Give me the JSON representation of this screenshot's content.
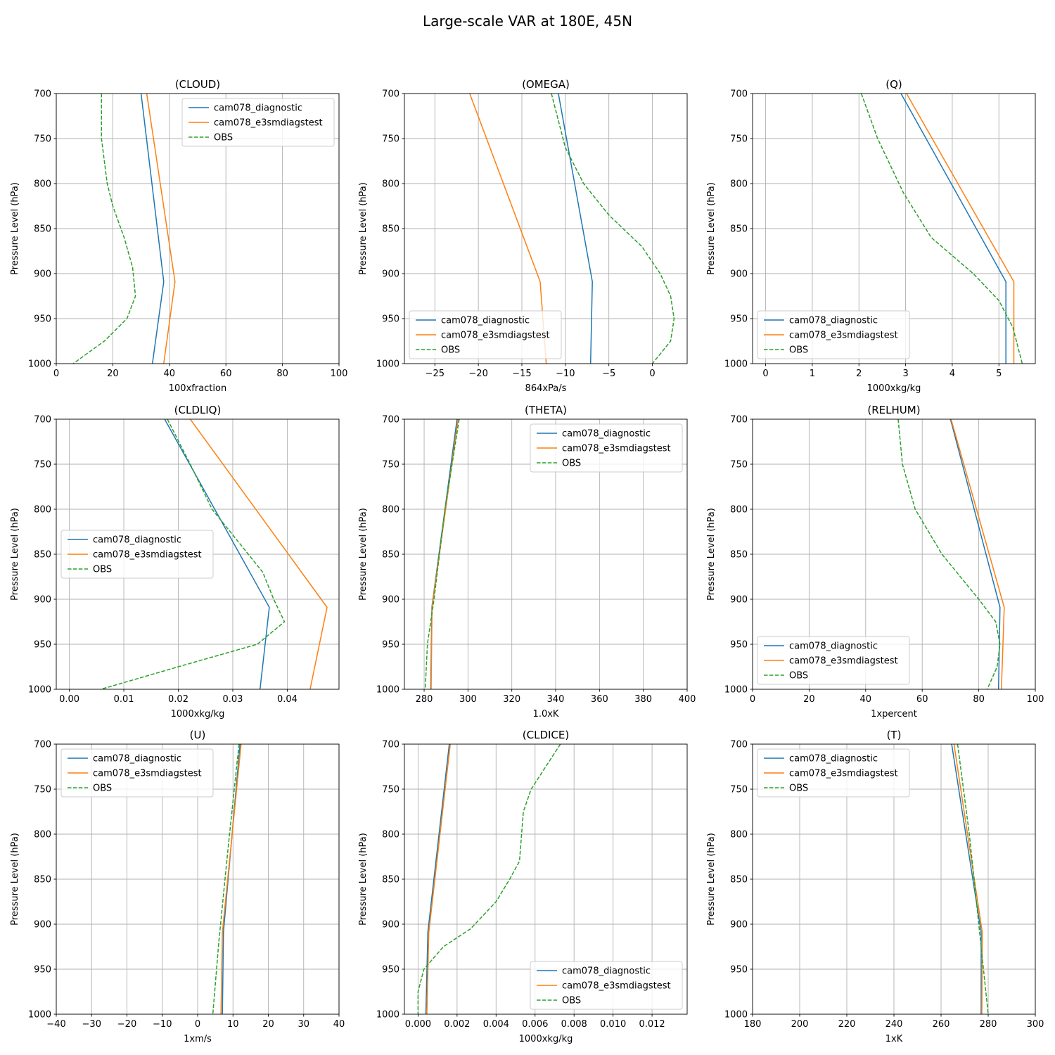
{
  "figure_title": "Large-scale VAR at 180E, 45N",
  "colors": {
    "cam078_diagnostic": "#1f77b4",
    "cam078_e3smdiagstest": "#ff7f0e",
    "OBS": "#2ca02c"
  },
  "chart_data": [
    {
      "type": "line",
      "title": "(CLOUD)",
      "xlabel": "100xfraction",
      "ylabel": "Pressure Level (hPa)",
      "xlim": [
        0,
        100
      ],
      "ylim": [
        1000,
        700
      ],
      "xticks": [
        0,
        20,
        40,
        60,
        80,
        100
      ],
      "xtick_labels": [
        "0",
        "20",
        "40",
        "60",
        "80",
        "100"
      ],
      "yticks": [
        700,
        750,
        800,
        850,
        900,
        950,
        1000
      ],
      "ytick_labels": [
        "700",
        "750",
        "800",
        "850",
        "900",
        "950",
        "1000"
      ],
      "grid": true,
      "legend": "upper right",
      "series": [
        {
          "name": "cam078_diagnostic",
          "style": "solid",
          "x": [
            30,
            38,
            34
          ],
          "y": [
            700,
            909,
            1000
          ]
        },
        {
          "name": "cam078_e3smdiagstest",
          "style": "solid",
          "x": [
            32,
            42,
            38
          ],
          "y": [
            700,
            909,
            1000
          ]
        },
        {
          "name": "OBS",
          "style": "dashed",
          "x": [
            16,
            16,
            18,
            20,
            24,
            27,
            28,
            25,
            17,
            6
          ],
          "y": [
            700,
            750,
            800,
            825,
            860,
            893,
            925,
            950,
            975,
            1000
          ]
        }
      ]
    },
    {
      "type": "line",
      "title": "(OMEGA)",
      "xlabel": "864xPa/s",
      "ylabel": "Pressure Level (hPa)",
      "xlim": [
        -28.5,
        4
      ],
      "ylim": [
        1000,
        700
      ],
      "xticks": [
        -25,
        -20,
        -15,
        -10,
        -5,
        0
      ],
      "xtick_labels": [
        "−25",
        "−20",
        "−15",
        "−10",
        "−5",
        "0"
      ],
      "yticks": [
        700,
        750,
        800,
        850,
        900,
        950,
        1000
      ],
      "ytick_labels": [
        "700",
        "750",
        "800",
        "850",
        "900",
        "950",
        "1000"
      ],
      "grid": true,
      "legend": "lower left",
      "series": [
        {
          "name": "cam078_diagnostic",
          "style": "solid",
          "x": [
            -10.8,
            -6.9,
            -7.1
          ],
          "y": [
            700,
            909,
            1000
          ]
        },
        {
          "name": "cam078_e3smdiagstest",
          "style": "solid",
          "x": [
            -21,
            -12.9,
            -12.2
          ],
          "y": [
            700,
            909,
            1000
          ]
        },
        {
          "name": "OBS",
          "style": "dashed",
          "x": [
            -11.6,
            -10,
            -7.9,
            -5,
            -1.2,
            0.9,
            2.1,
            2.5,
            2.1,
            0
          ],
          "y": [
            700,
            760,
            800,
            835,
            870,
            900,
            925,
            950,
            975,
            1000
          ]
        }
      ]
    },
    {
      "type": "line",
      "title": "(Q)",
      "xlabel": "1000xkg/kg",
      "ylabel": "Pressure Level (hPa)",
      "xlim": [
        -0.28,
        5.78
      ],
      "ylim": [
        1000,
        700
      ],
      "xticks": [
        0,
        1,
        2,
        3,
        4,
        5
      ],
      "xtick_labels": [
        "0",
        "1",
        "2",
        "3",
        "4",
        "5"
      ],
      "yticks": [
        700,
        750,
        800,
        850,
        900,
        950,
        1000
      ],
      "ytick_labels": [
        "700",
        "750",
        "800",
        "850",
        "900",
        "950",
        "1000"
      ],
      "grid": true,
      "legend": "lower left",
      "series": [
        {
          "name": "cam078_diagnostic",
          "style": "solid",
          "x": [
            2.9,
            5.15,
            5.15
          ],
          "y": [
            700,
            909,
            1000
          ]
        },
        {
          "name": "cam078_e3smdiagstest",
          "style": "solid",
          "x": [
            3.02,
            5.32,
            5.32
          ],
          "y": [
            700,
            909,
            1000
          ]
        },
        {
          "name": "OBS",
          "style": "dashed",
          "x": [
            2.05,
            2.4,
            2.95,
            3.55,
            4.45,
            5,
            5.3,
            5.5
          ],
          "y": [
            700,
            750,
            810,
            860,
            900,
            930,
            960,
            1000
          ]
        }
      ]
    },
    {
      "type": "line",
      "title": "(CLDLIQ)",
      "xlabel": "1000xkg/kg",
      "ylabel": "Pressure Level (hPa)",
      "xlim": [
        -0.0024,
        0.0495
      ],
      "ylim": [
        1000,
        700
      ],
      "xticks": [
        0,
        0.01,
        0.02,
        0.03,
        0.04
      ],
      "xtick_labels": [
        "0.00",
        "0.01",
        "0.02",
        "0.03",
        "0.04"
      ],
      "yticks": [
        700,
        750,
        800,
        850,
        900,
        950,
        1000
      ],
      "ytick_labels": [
        "700",
        "750",
        "800",
        "850",
        "900",
        "950",
        "1000"
      ],
      "grid": true,
      "legend": "center left",
      "series": [
        {
          "name": "cam078_diagnostic",
          "style": "solid",
          "x": [
            0.0175,
            0.0367,
            0.035
          ],
          "y": [
            700,
            909,
            1000
          ]
        },
        {
          "name": "cam078_e3smdiagstest",
          "style": "solid",
          "x": [
            0.0222,
            0.0473,
            0.0442
          ],
          "y": [
            700,
            909,
            1000
          ]
        },
        {
          "name": "OBS",
          "style": "dashed",
          "x": [
            0.018,
            0.0222,
            0.0262,
            0.0302,
            0.0355,
            0.0375,
            0.0395,
            0.0345,
            0.02,
            0.0058
          ],
          "y": [
            700,
            750,
            800,
            830,
            870,
            900,
            925,
            950,
            975,
            1000
          ]
        }
      ]
    },
    {
      "type": "line",
      "title": "(THETA)",
      "xlabel": "1.0xK",
      "ylabel": "Pressure Level (hPa)",
      "xlim": [
        271,
        400
      ],
      "ylim": [
        1000,
        700
      ],
      "xticks": [
        280,
        300,
        320,
        340,
        360,
        380,
        400
      ],
      "xtick_labels": [
        "280",
        "300",
        "320",
        "340",
        "360",
        "380",
        "400"
      ],
      "yticks": [
        700,
        750,
        800,
        850,
        900,
        950,
        1000
      ],
      "ytick_labels": [
        "700",
        "750",
        "800",
        "850",
        "900",
        "950",
        "1000"
      ],
      "grid": true,
      "legend": "upper right",
      "series": [
        {
          "name": "cam078_diagnostic",
          "style": "solid",
          "x": [
            295,
            283.5,
            283
          ],
          "y": [
            700,
            909,
            1000
          ]
        },
        {
          "name": "cam078_e3smdiagstest",
          "style": "solid",
          "x": [
            295.5,
            283.6,
            283.2
          ],
          "y": [
            700,
            909,
            1000
          ]
        },
        {
          "name": "OBS",
          "style": "dashed",
          "x": [
            296,
            289.5,
            284.5,
            281.5,
            280.5
          ],
          "y": [
            700,
            800,
            900,
            950,
            1000
          ]
        }
      ]
    },
    {
      "type": "line",
      "title": "(RELHUM)",
      "xlabel": "1xpercent",
      "ylabel": "Pressure Level (hPa)",
      "xlim": [
        0,
        100
      ],
      "ylim": [
        1000,
        700
      ],
      "xticks": [
        0,
        20,
        40,
        60,
        80,
        100
      ],
      "xtick_labels": [
        "0",
        "20",
        "40",
        "60",
        "80",
        "100"
      ],
      "yticks": [
        700,
        750,
        800,
        850,
        900,
        950,
        1000
      ],
      "ytick_labels": [
        "700",
        "750",
        "800",
        "850",
        "900",
        "950",
        "1000"
      ],
      "grid": true,
      "legend": "lower left",
      "series": [
        {
          "name": "cam078_diagnostic",
          "style": "solid",
          "x": [
            70,
            87.5,
            87
          ],
          "y": [
            700,
            909,
            1000
          ]
        },
        {
          "name": "cam078_e3smdiagstest",
          "style": "solid",
          "x": [
            70.2,
            89,
            88
          ],
          "y": [
            700,
            909,
            1000
          ]
        },
        {
          "name": "OBS",
          "style": "dashed",
          "x": [
            51.5,
            53,
            57.5,
            67,
            80,
            86,
            87.5,
            86.5,
            83
          ],
          "y": [
            700,
            750,
            800,
            850,
            900,
            925,
            950,
            975,
            1000
          ]
        }
      ]
    },
    {
      "type": "line",
      "title": "(U)",
      "xlabel": "1xm/s",
      "ylabel": "Pressure Level (hPa)",
      "xlim": [
        -40,
        40
      ],
      "ylim": [
        1000,
        700
      ],
      "xticks": [
        -40,
        -30,
        -20,
        -10,
        0,
        10,
        20,
        30,
        40
      ],
      "xtick_labels": [
        "−40",
        "−30",
        "−20",
        "−10",
        "0",
        "10",
        "20",
        "30",
        "40"
      ],
      "yticks": [
        700,
        750,
        800,
        850,
        900,
        950,
        1000
      ],
      "ytick_labels": [
        "700",
        "750",
        "800",
        "850",
        "900",
        "950",
        "1000"
      ],
      "grid": true,
      "legend": "upper left",
      "series": [
        {
          "name": "cam078_diagnostic",
          "style": "solid",
          "x": [
            12,
            7.3,
            7
          ],
          "y": [
            700,
            909,
            1000
          ]
        },
        {
          "name": "cam078_e3smdiagstest",
          "style": "solid",
          "x": [
            12.3,
            7,
            6.6
          ],
          "y": [
            700,
            909,
            1000
          ]
        },
        {
          "name": "OBS",
          "style": "dashed",
          "x": [
            11.7,
            8.5,
            6,
            4.3
          ],
          "y": [
            700,
            820,
            920,
            1000
          ]
        }
      ]
    },
    {
      "type": "line",
      "title": "(CLDICE)",
      "xlabel": "1000xkg/kg",
      "ylabel": "Pressure Level (hPa)",
      "xlim": [
        -0.0007,
        0.0138
      ],
      "ylim": [
        1000,
        700
      ],
      "xticks": [
        0,
        0.002,
        0.004,
        0.006,
        0.008,
        0.01,
        0.012
      ],
      "xtick_labels": [
        "0.000",
        "0.002",
        "0.004",
        "0.006",
        "0.008",
        "0.010",
        "0.012"
      ],
      "yticks": [
        700,
        750,
        800,
        850,
        900,
        950,
        1000
      ],
      "ytick_labels": [
        "700",
        "750",
        "800",
        "850",
        "900",
        "950",
        "1000"
      ],
      "grid": true,
      "legend": "lower right",
      "series": [
        {
          "name": "cam078_diagnostic",
          "style": "solid",
          "x": [
            0.0016,
            0.0005,
            0.0004
          ],
          "y": [
            700,
            909,
            1000
          ]
        },
        {
          "name": "cam078_e3smdiagstest",
          "style": "solid",
          "x": [
            0.00165,
            0.00055,
            0.00045
          ],
          "y": [
            700,
            909,
            1000
          ]
        },
        {
          "name": "OBS",
          "style": "dashed",
          "x": [
            0.0073,
            0.0058,
            0.0054,
            0.0052,
            0.0047,
            0.004,
            0.0027,
            0.0013,
            0.0003,
            0,
            0
          ],
          "y": [
            700,
            750,
            775,
            830,
            850,
            875,
            905,
            925,
            950,
            975,
            1000
          ]
        }
      ]
    },
    {
      "type": "line",
      "title": "(T)",
      "xlabel": "1xK",
      "ylabel": "Pressure Level (hPa)",
      "xlim": [
        180,
        300
      ],
      "ylim": [
        1000,
        700
      ],
      "xticks": [
        180,
        200,
        220,
        240,
        260,
        280,
        300
      ],
      "xtick_labels": [
        "180",
        "200",
        "220",
        "240",
        "260",
        "280",
        "300"
      ],
      "yticks": [
        700,
        750,
        800,
        850,
        900,
        950,
        1000
      ],
      "ytick_labels": [
        "700",
        "750",
        "800",
        "850",
        "900",
        "950",
        "1000"
      ],
      "grid": true,
      "legend": "upper left",
      "series": [
        {
          "name": "cam078_diagnostic",
          "style": "solid",
          "x": [
            264.5,
            277,
            277
          ],
          "y": [
            700,
            909,
            1000
          ]
        },
        {
          "name": "cam078_e3smdiagstest",
          "style": "solid",
          "x": [
            265.5,
            277.5,
            277.3
          ],
          "y": [
            700,
            909,
            1000
          ]
        },
        {
          "name": "OBS",
          "style": "dashed",
          "x": [
            267,
            272,
            276,
            280
          ],
          "y": [
            700,
            800,
            900,
            1000
          ]
        }
      ]
    }
  ]
}
